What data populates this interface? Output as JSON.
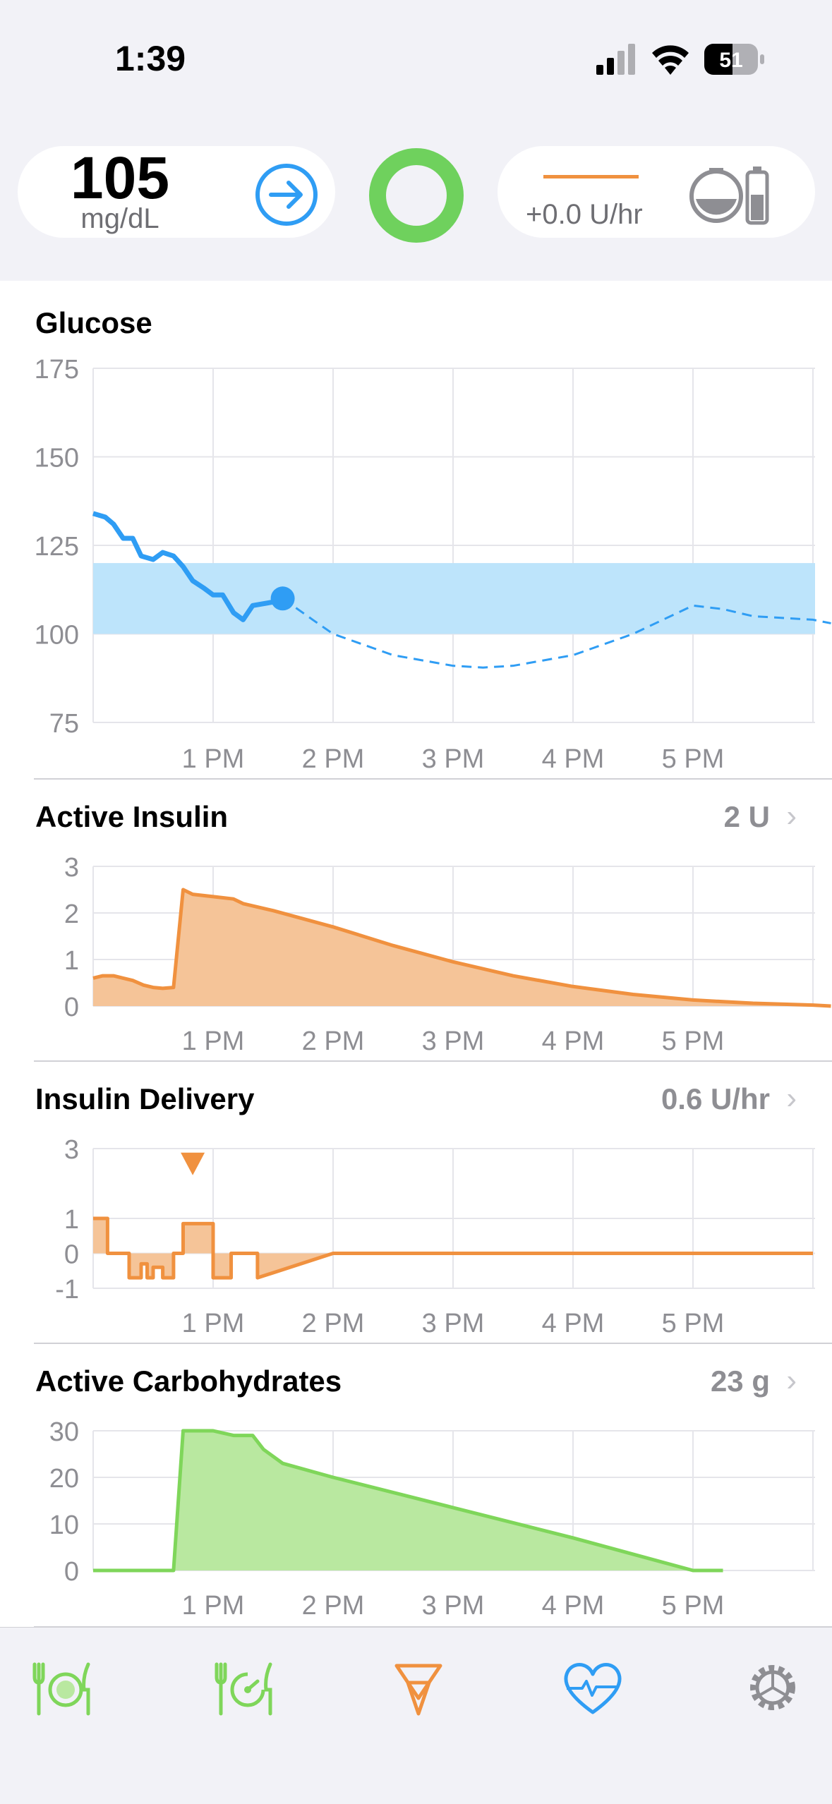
{
  "status_bar": {
    "time": "1:39",
    "battery": "51"
  },
  "hud": {
    "glucose_value": "105",
    "glucose_unit": "mg/dL",
    "trend_icon": "arrow-right-circle-icon",
    "loop_status_icon": "loop-ring-icon",
    "basal_rate": "+0.0 U/hr",
    "pump_icon": "pump-reservoir-icon"
  },
  "charts": {
    "glucose": {
      "title": "Glucose"
    },
    "active_insulin": {
      "title": "Active Insulin",
      "value": "2 U"
    },
    "insulin_delivery": {
      "title": "Insulin Delivery",
      "value": "0.6 U/hr"
    },
    "active_carbs": {
      "title": "Active Carbohydrates",
      "value": "23 g"
    }
  },
  "colors": {
    "glucose": "#2f9df4",
    "glucose_range": "#bde4fb",
    "insulin": "#f0913f",
    "insulin_fill": "#f5c498",
    "carbs": "#7fd65a",
    "carbs_fill": "#b9e8a0",
    "loop": "#6fd15d",
    "settings": "#8e8e93"
  },
  "chart_data": [
    {
      "type": "line",
      "title": "Glucose",
      "x_ticks": [
        "1 PM",
        "2 PM",
        "3 PM",
        "4 PM",
        "5 PM"
      ],
      "y_ticks": [
        175,
        150,
        125,
        100,
        75
      ],
      "ylim": [
        75,
        175
      ],
      "xlim_hours": [
        12.0,
        18.0
      ],
      "target_range": [
        100,
        120
      ],
      "series": [
        {
          "x": [
            12.0,
            12.1,
            12.17,
            12.25,
            12.33,
            12.4,
            12.5,
            12.58,
            12.67,
            12.75,
            12.83,
            12.92,
            13.0,
            13.08,
            13.17,
            13.25,
            13.33,
            13.5,
            13.58
          ],
          "y": [
            134,
            133,
            131,
            127,
            127,
            122,
            121,
            123,
            122,
            119,
            115,
            113,
            111,
            111,
            106,
            104,
            108,
            109,
            110
          ]
        },
        {
          "x": [
            13.58,
            13.83,
            14.0,
            14.5,
            15.0,
            15.25,
            15.5,
            16.0,
            16.5,
            17.0,
            17.25,
            17.5,
            18.0,
            18.15
          ],
          "y": [
            110,
            104,
            100,
            94,
            91,
            90.5,
            91,
            94,
            100,
            108,
            107,
            105,
            104,
            103
          ]
        }
      ]
    },
    {
      "type": "area",
      "title": "Active Insulin",
      "x_ticks": [
        "1 PM",
        "2 PM",
        "3 PM",
        "4 PM",
        "5 PM"
      ],
      "y_ticks": [
        3,
        2,
        1,
        0
      ],
      "ylim": [
        0,
        3
      ],
      "xlim_hours": [
        12.0,
        18.0
      ],
      "series": [
        {
          "x": [
            12.0,
            12.08,
            12.17,
            12.25,
            12.33,
            12.42,
            12.5,
            12.58,
            12.67,
            12.75,
            12.83,
            13.0,
            13.17,
            13.25,
            13.5,
            14.0,
            14.5,
            15.0,
            15.5,
            16.0,
            16.5,
            17.0,
            17.5,
            18.0,
            18.15
          ],
          "y": [
            0.6,
            0.65,
            0.65,
            0.6,
            0.55,
            0.45,
            0.4,
            0.38,
            0.4,
            2.5,
            2.4,
            2.35,
            2.3,
            2.2,
            2.05,
            1.7,
            1.3,
            0.95,
            0.65,
            0.42,
            0.25,
            0.13,
            0.06,
            0.02,
            0.0
          ]
        }
      ]
    },
    {
      "type": "area",
      "title": "Insulin Delivery",
      "x_ticks": [
        "1 PM",
        "2 PM",
        "3 PM",
        "4 PM",
        "5 PM"
      ],
      "y_ticks": [
        3,
        1,
        0,
        -1
      ],
      "ylim": [
        -1,
        3
      ],
      "xlim_hours": [
        12.0,
        18.0
      ],
      "bolus_marker_hour": 12.83,
      "series": [
        {
          "x": [
            12.0,
            12.12,
            12.12,
            12.3,
            12.3,
            12.4,
            12.4,
            12.45,
            12.45,
            12.5,
            12.5,
            12.58,
            12.58,
            12.67,
            12.67,
            12.75,
            12.75,
            13.0,
            13.0,
            13.15,
            13.15,
            13.37,
            13.37,
            14.0,
            18.0
          ],
          "y": [
            1,
            1,
            0,
            0,
            -0.7,
            -0.7,
            -0.3,
            -0.3,
            -0.7,
            -0.7,
            -0.4,
            -0.4,
            -0.7,
            -0.7,
            0,
            0,
            0.85,
            0.85,
            -0.7,
            -0.7,
            0,
            0,
            -0.7,
            0,
            0
          ]
        }
      ]
    },
    {
      "type": "area",
      "title": "Active Carbohydrates",
      "x_ticks": [
        "1 PM",
        "2 PM",
        "3 PM",
        "4 PM",
        "5 PM"
      ],
      "y_ticks": [
        30,
        20,
        10,
        0
      ],
      "ylim": [
        0,
        30
      ],
      "xlim_hours": [
        12.0,
        18.0
      ],
      "series": [
        {
          "x": [
            12.0,
            12.67,
            12.75,
            13.0,
            13.17,
            13.33,
            13.42,
            13.58,
            14.0,
            15.0,
            16.0,
            17.0,
            17.25
          ],
          "y": [
            0,
            0,
            30,
            30,
            29,
            29,
            26,
            23,
            20,
            13.5,
            7,
            0,
            0
          ]
        }
      ]
    }
  ]
}
